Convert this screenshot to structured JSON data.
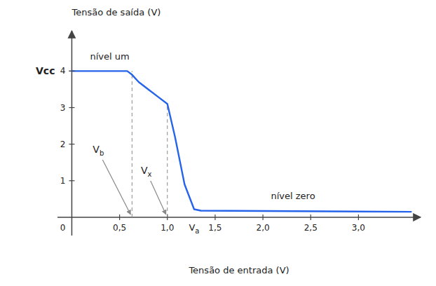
{
  "chart_data": {
    "type": "line",
    "x_label": "Tensão de entrada (V)",
    "y_label": "Tensão de saída (V)",
    "x": [
      0.0,
      0.58,
      0.63,
      0.7,
      0.8,
      0.9,
      1.0,
      1.08,
      1.18,
      1.28,
      1.35,
      3.55
    ],
    "values": [
      4.0,
      4.0,
      3.9,
      3.7,
      3.5,
      3.3,
      3.1,
      2.2,
      0.9,
      0.22,
      0.18,
      0.15
    ],
    "xlim": [
      -0.15,
      3.65
    ],
    "ylim": [
      -0.5,
      5.1
    ],
    "xticks": [
      {
        "value": 0.5,
        "label": "0,5"
      },
      {
        "value": 1.0,
        "label": "1,0"
      },
      {
        "value": 1.5,
        "label": "1,5"
      },
      {
        "value": 2.0,
        "label": "2,0"
      },
      {
        "value": 2.5,
        "label": "2,5"
      },
      {
        "value": 3.0,
        "label": "3,0"
      }
    ],
    "yticks": [
      1,
      2,
      3,
      4
    ],
    "markers": [
      {
        "label": "Vb",
        "x": 0.63,
        "y": 4.0
      },
      {
        "label": "Vx",
        "x": 1.0,
        "y": 3.1
      }
    ],
    "annotations": [
      {
        "text": "0",
        "x": 0,
        "y": 0
      },
      {
        "text": "Vcc",
        "y": 4.0
      },
      {
        "text": "nível um"
      },
      {
        "text": "nível zero"
      },
      {
        "text": "Va",
        "x": 1.28
      }
    ]
  }
}
